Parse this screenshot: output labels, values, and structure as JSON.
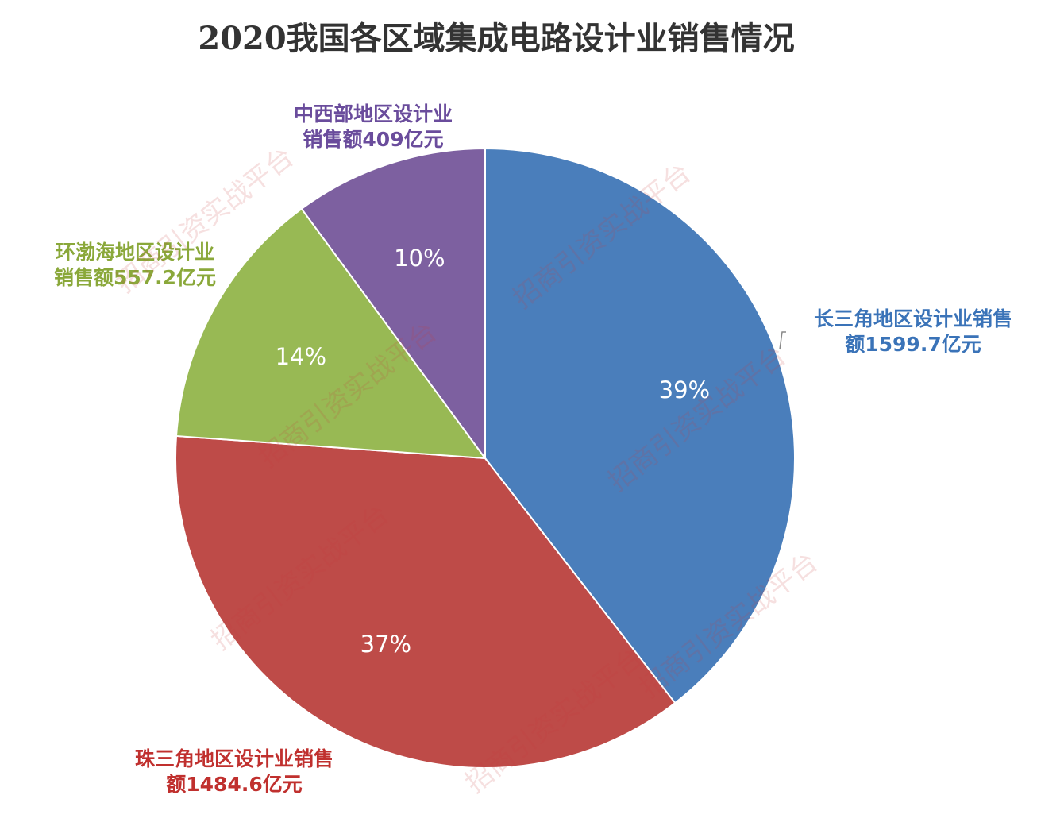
{
  "chart_data": {
    "type": "pie",
    "title": "2020我国各区域集成电路设计业销售情况",
    "slices": [
      {
        "label_line1": "长三角地区设计业销售",
        "label_line2": "额1599.7亿元",
        "value": 1599.7,
        "percent": "39%",
        "color": "#4a7ebb"
      },
      {
        "label_line1": "珠三角地区设计业销售",
        "label_line2": "额1484.6亿元",
        "value": 1484.6,
        "percent": "37%",
        "color": "#be4b48"
      },
      {
        "label_line1": "环渤海地区设计业",
        "label_line2": "销售额557.2亿元",
        "value": 557.2,
        "percent": "14%",
        "color": "#98b954"
      },
      {
        "label_line1": "中西部地区设计业",
        "label_line2": "销售额409亿元",
        "value": 409,
        "percent": "10%",
        "color": "#7d60a0"
      }
    ]
  },
  "watermark": {
    "text": "招商引资实战平台"
  }
}
